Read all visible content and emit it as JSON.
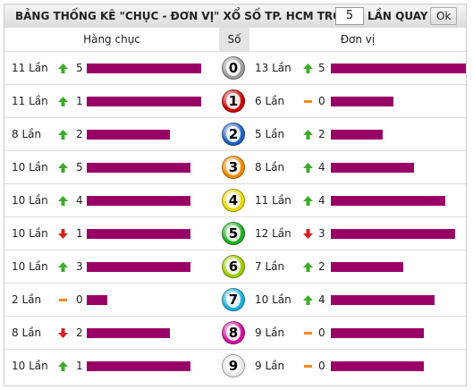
{
  "header": {
    "title": "BẢNG THỐNG KÊ \"CHỤC - ĐƠN VỊ\" XỔ SỐ TP. HCM TRONG",
    "input_value": "5",
    "suffix": "LẦN QUAY",
    "button": "Ok"
  },
  "columns": {
    "tens": "Hàng chục",
    "digit": "Số",
    "units": "Đơn vị"
  },
  "bar_color": "#990066",
  "rows": [
    {
      "digit": "0",
      "ball_color": "#9a9a9a",
      "tens": {
        "count": 11,
        "count_label": "11 Lần",
        "trend": "up",
        "change": 5
      },
      "units": {
        "count": 13,
        "count_label": "13 Lần",
        "trend": "up",
        "change": 5
      }
    },
    {
      "digit": "1",
      "ball_color": "#cc0000",
      "tens": {
        "count": 11,
        "count_label": "11 Lần",
        "trend": "up",
        "change": 1
      },
      "units": {
        "count": 6,
        "count_label": "6 Lần",
        "trend": "flat",
        "change": 0
      }
    },
    {
      "digit": "2",
      "ball_color": "#1f5fbf",
      "tens": {
        "count": 8,
        "count_label": "8 Lần",
        "trend": "up",
        "change": 2
      },
      "units": {
        "count": 5,
        "count_label": "5 Lần",
        "trend": "up",
        "change": 2
      }
    },
    {
      "digit": "3",
      "ball_color": "#f08a00",
      "tens": {
        "count": 10,
        "count_label": "10 Lần",
        "trend": "up",
        "change": 5
      },
      "units": {
        "count": 8,
        "count_label": "8 Lần",
        "trend": "up",
        "change": 4
      }
    },
    {
      "digit": "4",
      "ball_color": "#e6d800",
      "tens": {
        "count": 10,
        "count_label": "10 Lần",
        "trend": "up",
        "change": 4
      },
      "units": {
        "count": 11,
        "count_label": "11 Lần",
        "trend": "up",
        "change": 4
      }
    },
    {
      "digit": "5",
      "ball_color": "#1fae1f",
      "tens": {
        "count": 10,
        "count_label": "10 Lần",
        "trend": "down",
        "change": 1
      },
      "units": {
        "count": 12,
        "count_label": "12 Lần",
        "trend": "down",
        "change": 3
      }
    },
    {
      "digit": "6",
      "ball_color": "#9ccc00",
      "tens": {
        "count": 10,
        "count_label": "10 Lần",
        "trend": "up",
        "change": 3
      },
      "units": {
        "count": 7,
        "count_label": "7 Lần",
        "trend": "up",
        "change": 2
      }
    },
    {
      "digit": "7",
      "ball_color": "#1ab0d8",
      "tens": {
        "count": 2,
        "count_label": "2 Lần",
        "trend": "flat",
        "change": 0
      },
      "units": {
        "count": 10,
        "count_label": "10 Lần",
        "trend": "up",
        "change": 4
      }
    },
    {
      "digit": "8",
      "ball_color": "#d0109a",
      "tens": {
        "count": 8,
        "count_label": "8 Lần",
        "trend": "down",
        "change": 2
      },
      "units": {
        "count": 9,
        "count_label": "9 Lần",
        "trend": "flat",
        "change": 0
      }
    },
    {
      "digit": "9",
      "ball_color": "#e8e8e8",
      "tens": {
        "count": 10,
        "count_label": "10 Lần",
        "trend": "up",
        "change": 1
      },
      "units": {
        "count": 9,
        "count_label": "9 Lần",
        "trend": "flat",
        "change": 0
      }
    }
  ]
}
